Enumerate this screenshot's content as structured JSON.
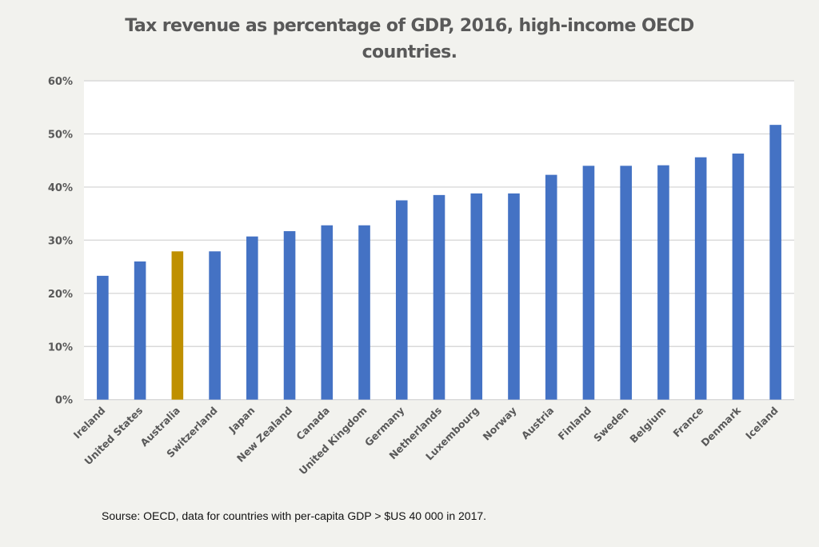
{
  "chart_data": {
    "type": "bar",
    "title": "Tax revenue as percentage of GDP, 2016, high-income OECD countries.",
    "title_lines": [
      "Tax revenue as percentage of GDP, 2016, high-income OECD",
      "countries."
    ],
    "xlabel": "",
    "ylabel": "",
    "ylim": [
      0,
      60
    ],
    "y_ticks": [
      0,
      10,
      20,
      30,
      40,
      50,
      60
    ],
    "y_tick_labels": [
      "0%",
      "10%",
      "20%",
      "30%",
      "40%",
      "50%",
      "60%"
    ],
    "grid": true,
    "legend": "none",
    "categories": [
      "Ireland",
      "United States",
      "Australia",
      "Switzerland",
      "Japan",
      "New Zealand",
      "Canada",
      "United Kingdom",
      "Germany",
      "Netherlands",
      "Luxembourg",
      "Norway",
      "Austria",
      "Finland",
      "Sweden",
      "Belgium",
      "France",
      "Denmark",
      "Iceland"
    ],
    "values": [
      23.3,
      26.0,
      27.9,
      27.9,
      30.7,
      31.7,
      32.8,
      32.8,
      37.5,
      38.5,
      38.8,
      38.8,
      42.3,
      44.0,
      44.0,
      44.1,
      45.6,
      46.3,
      51.7
    ],
    "highlight": "Australia",
    "colors": {
      "default": "#4472c4",
      "highlight": "#bf9000",
      "grid": "#d9d9d9",
      "tick_text": "#595959"
    },
    "source": "Sourse: OECD, data for countries with per-capita GDP > $US 40 000 in 2017."
  }
}
